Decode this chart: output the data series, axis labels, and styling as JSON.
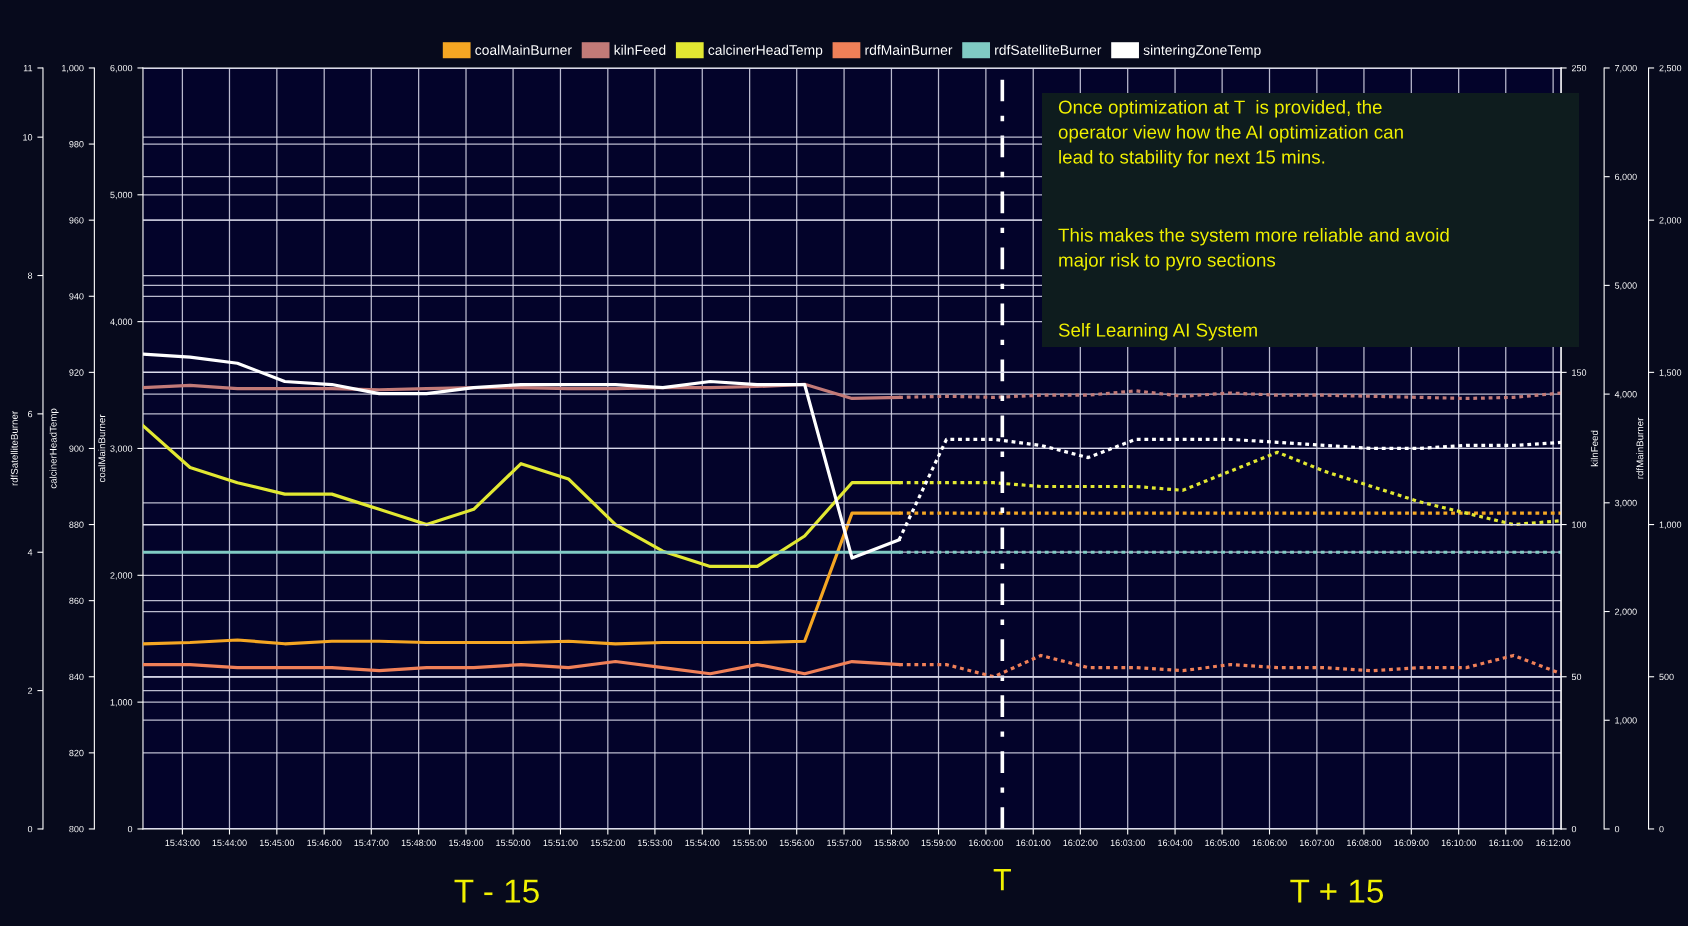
{
  "chart_data": [
    {
      "type": "line",
      "x": [
        15.7028,
        15.7194,
        15.7361,
        15.7528,
        15.7694,
        15.7861,
        15.8028,
        15.8194,
        15.8361,
        15.8528,
        15.8694,
        15.8861,
        15.9028,
        15.9194,
        15.9361,
        15.9528,
        15.9694,
        15.9861,
        16.0028,
        16.0194,
        16.0361,
        16.0528,
        16.0694,
        16.0861,
        16.1028,
        16.1194,
        16.1361,
        16.1528,
        16.1694,
        16.1861,
        16.2028
      ],
      "xlim": [
        15.7028,
        16.2028
      ],
      "xticks": [
        {
          "value": 15.7167,
          "label": "15:43:00"
        },
        {
          "value": 15.7333,
          "label": "15:44:00"
        },
        {
          "value": 15.75,
          "label": "15:45:00"
        },
        {
          "value": 15.7667,
          "label": "15:46:00"
        },
        {
          "value": 15.7833,
          "label": "15:47:00"
        },
        {
          "value": 15.8,
          "label": "15:48:00"
        },
        {
          "value": 15.8167,
          "label": "15:49:00"
        },
        {
          "value": 15.8333,
          "label": "15:50:00"
        },
        {
          "value": 15.85,
          "label": "15:51:00"
        },
        {
          "value": 15.8667,
          "label": "15:52:00"
        },
        {
          "value": 15.8833,
          "label": "15:53:00"
        },
        {
          "value": 15.9,
          "label": "15:54:00"
        },
        {
          "value": 15.9167,
          "label": "15:55:00"
        },
        {
          "value": 15.9333,
          "label": "15:56:00"
        },
        {
          "value": 15.95,
          "label": "15:57:00"
        },
        {
          "value": 15.9667,
          "label": "15:58:00"
        },
        {
          "value": 15.9833,
          "label": "15:59:00"
        },
        {
          "value": 16.0,
          "label": "16:00:00"
        },
        {
          "value": 16.0167,
          "label": "16:01:00"
        },
        {
          "value": 16.0333,
          "label": "16:02:00"
        },
        {
          "value": 16.05,
          "label": "16:03:00"
        },
        {
          "value": 16.0667,
          "label": "16:04:00"
        },
        {
          "value": 16.0833,
          "label": "16:05:00"
        },
        {
          "value": 16.1,
          "label": "16:06:00"
        },
        {
          "value": 16.1167,
          "label": "16:07:00"
        },
        {
          "value": 16.1333,
          "label": "16:08:00"
        },
        {
          "value": 16.15,
          "label": "16:09:00"
        },
        {
          "value": 16.1667,
          "label": "16:10:00"
        },
        {
          "value": 16.1833,
          "label": "16:11:00"
        },
        {
          "value": 16.2,
          "label": "16:12:00"
        }
      ],
      "ylabel": "coalMainBurner",
      "ylim": [
        0,
        6000
      ],
      "yticks": [
        0,
        {
          "value": 1000,
          "label": "1,000"
        },
        {
          "value": 2000,
          "label": "2,000"
        },
        {
          "value": 3000,
          "label": "3,000"
        },
        {
          "value": 4000,
          "label": "4,000"
        },
        {
          "value": 5000,
          "label": "5,000"
        },
        {
          "value": 6000,
          "label": "6,000"
        }
      ],
      "y2label": "kilnFeed",
      "y2lim": [
        0,
        7000
      ],
      "y2ticks": [
        0,
        {
          "value": 1000,
          "label": "1,000"
        },
        {
          "value": 2000,
          "label": "2,000"
        },
        {
          "value": 3000,
          "label": "3,000"
        },
        {
          "value": 4000,
          "label": "4,000"
        },
        {
          "value": 5000,
          "label": "5,000"
        },
        {
          "value": 6000,
          "label": "6,000"
        },
        {
          "value": 7000,
          "label": "7,000"
        }
      ],
      "y3label": "calcinerHeadTemp",
      "y3lim": [
        800,
        1000
      ],
      "y3ticks": [
        800,
        820,
        840,
        860,
        880,
        900,
        920,
        940,
        960,
        980,
        {
          "value": 1000,
          "label": "1,000"
        }
      ],
      "series": [
        {
          "name": "coalMainBurner",
          "color": "#f5a623",
          "line_style": "solid",
          "values": [
            1460,
            1470,
            1490,
            1460,
            1480,
            1480,
            1470,
            1470,
            1470,
            1480,
            1460,
            1470,
            1470,
            1470,
            1480,
            2490,
            2490,
            null,
            null,
            null,
            null,
            null,
            null,
            null,
            null,
            null,
            null,
            null,
            null,
            null,
            null
          ]
        },
        {
          "name": "kilnFeed",
          "color": "#c27a78",
          "axis": "y2",
          "line_style": "solid",
          "values": [
            4060,
            4080,
            4050,
            4050,
            4050,
            4040,
            4050,
            4060,
            4060,
            4050,
            4050,
            4060,
            4060,
            4070,
            4090,
            3960,
            3970,
            null,
            null,
            null,
            null,
            null,
            null,
            null,
            null,
            null,
            null,
            null,
            null,
            null,
            null
          ]
        },
        {
          "name": "calcinerHeadTemp",
          "color": "#e2e832",
          "axis": "y3",
          "line_style": "solid",
          "values": [
            906,
            895,
            891,
            888,
            888,
            884,
            880,
            884,
            896,
            892,
            880,
            873,
            869,
            869,
            877,
            891,
            891,
            null,
            null,
            null,
            null,
            null,
            null,
            null,
            null,
            null,
            null,
            null,
            null,
            null,
            null
          ]
        },
        {
          "color": "#f5a623",
          "line_style": "dotted",
          "values": [
            null,
            null,
            null,
            null,
            null,
            null,
            null,
            null,
            null,
            null,
            null,
            null,
            null,
            null,
            null,
            null,
            2490,
            2490,
            2490,
            2490,
            2490,
            2490,
            2490,
            2490,
            2490,
            2490,
            2490,
            2490,
            2490,
            2490,
            2490
          ]
        },
        {
          "color": "#c27a78",
          "axis": "y2",
          "line_style": "dotted",
          "values": [
            null,
            null,
            null,
            null,
            null,
            null,
            null,
            null,
            null,
            null,
            null,
            null,
            null,
            null,
            null,
            null,
            3970,
            3980,
            3970,
            3990,
            3990,
            4030,
            3980,
            4010,
            3990,
            3990,
            3980,
            3970,
            3960,
            3970,
            4010
          ]
        },
        {
          "color": "#e2e832",
          "axis": "y3",
          "line_style": "dotted",
          "values": [
            null,
            null,
            null,
            null,
            null,
            null,
            null,
            null,
            null,
            null,
            null,
            null,
            null,
            null,
            null,
            null,
            891,
            891,
            891,
            890,
            890,
            890,
            889,
            894,
            899,
            894,
            890,
            886,
            883,
            880,
            881
          ]
        }
      ],
      "ref_lines": [
        {
          "axis": "x",
          "value": 16.0058,
          "label": "T",
          "color": "#ffffff",
          "line_style": "dashdot"
        }
      ],
      "annotations": [
        "Once optimization at T  is provided, the\noperator view how the AI optimization can\nlead to stability for next 15 mins.",
        "This makes the system more reliable and avoid\nmajor risk to pyro sections",
        "Self Learning AI System",
        "T - 15",
        "T + 15"
      ],
      "grid": true,
      "legend": "top"
    },
    {
      "type": "line",
      "x": [
        15.7028,
        15.7194,
        15.7361,
        15.7528,
        15.7694,
        15.7861,
        15.8028,
        15.8194,
        15.8361,
        15.8528,
        15.8694,
        15.8861,
        15.9028,
        15.9194,
        15.9361,
        15.9528,
        15.9694,
        15.9861,
        16.0028,
        16.0194,
        16.0361,
        16.0528,
        16.0694,
        16.0861,
        16.1028,
        16.1194,
        16.1361,
        16.1528,
        16.1694,
        16.1861,
        16.2028
      ],
      "xlim": [
        15.7028,
        16.2028
      ],
      "tick_labels": "y",
      "ylabel": "rdfSatelliteBurner",
      "ylim": [
        0,
        11
      ],
      "yticks": [
        0,
        2,
        4,
        6,
        8,
        10,
        11
      ],
      "y3lim": [
        0,
        250
      ],
      "y3ticks": [
        0,
        50,
        100,
        150,
        250
      ],
      "y2label": "rdfMainBurner",
      "y2lim": [
        0,
        2500
      ],
      "y2ticks": [
        0,
        500,
        {
          "value": 1000,
          "label": "1,000"
        },
        {
          "value": 1500,
          "label": "1,500"
        },
        {
          "value": 2000,
          "label": "2,000"
        },
        {
          "value": 2500,
          "label": "2,500"
        }
      ],
      "series": [
        {
          "name": "rdfMainBurner",
          "color": "#f08058",
          "axis": "y2",
          "line_style": "solid",
          "values": [
            540,
            540,
            530,
            530,
            530,
            520,
            530,
            530,
            540,
            530,
            550,
            530,
            510,
            540,
            510,
            550,
            540,
            null,
            null,
            null,
            null,
            null,
            null,
            null,
            null,
            null,
            null,
            null,
            null,
            null,
            null
          ]
        },
        {
          "name": "rdfSatelliteBurner",
          "color": "#80cbc4",
          "line_style": "solid",
          "values": [
            4,
            4,
            4,
            4,
            4,
            4,
            4,
            4,
            4,
            4,
            4,
            4,
            4,
            4,
            4,
            4,
            4,
            null,
            null,
            null,
            null,
            null,
            null,
            null,
            null,
            null,
            null,
            null,
            null,
            null,
            null
          ]
        },
        {
          "name": "sinteringZoneTemp",
          "color": "#ffffff",
          "axis": "y3",
          "line_style": "solid",
          "values": [
            156,
            155,
            153,
            147,
            146,
            143,
            143,
            145,
            146,
            146,
            146,
            145,
            147,
            146,
            146,
            89,
            95,
            null,
            null,
            null,
            null,
            null,
            null,
            null,
            null,
            null,
            null,
            null,
            null,
            null,
            null
          ]
        },
        {
          "color": "#f08058",
          "axis": "y2",
          "line_style": "dotted",
          "values": [
            null,
            null,
            null,
            null,
            null,
            null,
            null,
            null,
            null,
            null,
            null,
            null,
            null,
            null,
            null,
            null,
            540,
            540,
            500,
            570,
            530,
            530,
            520,
            540,
            530,
            530,
            520,
            530,
            530,
            570,
            510
          ]
        },
        {
          "color": "#80cbc4",
          "line_style": "dotted",
          "values": [
            null,
            null,
            null,
            null,
            null,
            null,
            null,
            null,
            null,
            null,
            null,
            null,
            null,
            null,
            null,
            null,
            4,
            4,
            4,
            4,
            4,
            4,
            4,
            4,
            4,
            4,
            4,
            4,
            4,
            4,
            4
          ]
        },
        {
          "color": "#ffffff",
          "axis": "y3",
          "line_style": "dotted",
          "values": [
            null,
            null,
            null,
            null,
            null,
            null,
            null,
            null,
            null,
            null,
            null,
            null,
            null,
            null,
            null,
            null,
            95,
            128,
            128,
            126,
            122,
            128,
            128,
            128,
            127,
            126,
            125,
            125,
            126,
            126,
            127
          ]
        }
      ],
      "grid": "y",
      "legend": "top"
    }
  ]
}
